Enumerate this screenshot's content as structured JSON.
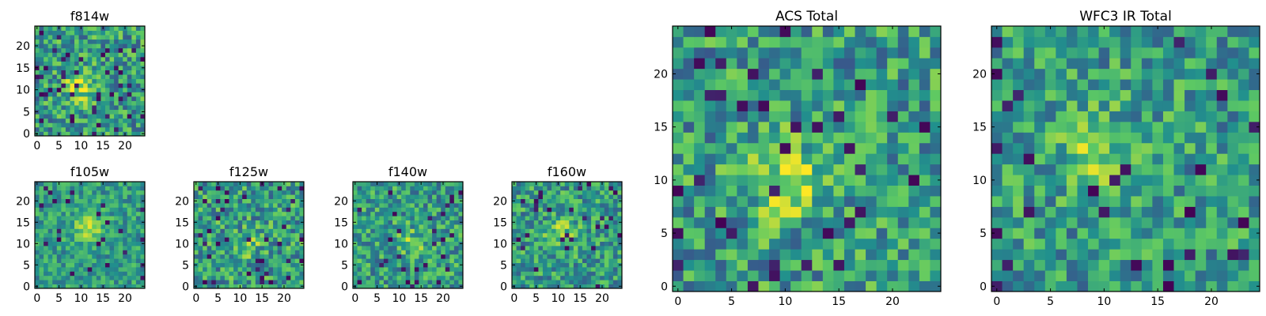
{
  "figure": {
    "background": "#ffffff",
    "colormap": [
      "#440154",
      "#3b528b",
      "#21908d",
      "#5dc963",
      "#fde725"
    ]
  },
  "chart_data": [
    {
      "type": "heatmap",
      "title": "f814w",
      "grid": "25x25",
      "xticks": [
        0,
        5,
        10,
        15,
        20
      ],
      "yticks": [
        0,
        5,
        10,
        15,
        20
      ],
      "xlim": [
        0,
        24
      ],
      "ylim": [
        0,
        24
      ],
      "value_range": [
        0,
        1
      ],
      "description_values": "pixel intensity map, bright compact source near (10, 12)",
      "seed": 814,
      "peak": [
        10,
        11
      ],
      "peak_strength": 0.35,
      "noise": 0.55,
      "dark_fraction": 0.06
    },
    {
      "type": "heatmap",
      "title": "f105w",
      "grid": "25x25",
      "xticks": [
        0,
        5,
        10,
        15,
        20
      ],
      "yticks": [
        0,
        5,
        10,
        15,
        20
      ],
      "xlim": [
        0,
        24
      ],
      "ylim": [
        0,
        24
      ],
      "value_range": [
        0,
        1
      ],
      "seed": 105,
      "peak": [
        12,
        14
      ],
      "peak_strength": 0.3,
      "noise": 0.4,
      "dark_fraction": 0.03
    },
    {
      "type": "heatmap",
      "title": "f125w",
      "grid": "25x25",
      "xticks": [
        0,
        5,
        10,
        15,
        20
      ],
      "yticks": [
        0,
        5,
        10,
        15,
        20
      ],
      "xlim": [
        0,
        24
      ],
      "ylim": [
        0,
        24
      ],
      "value_range": [
        0,
        1
      ],
      "seed": 125,
      "peak": [
        12,
        10
      ],
      "peak_strength": 0.15,
      "noise": 0.55,
      "dark_fraction": 0.05
    },
    {
      "type": "heatmap",
      "title": "f140w",
      "grid": "25x25",
      "xticks": [
        0,
        5,
        10,
        15,
        20
      ],
      "yticks": [
        0,
        5,
        10,
        15,
        20
      ],
      "xlim": [
        0,
        24
      ],
      "ylim": [
        0,
        24
      ],
      "value_range": [
        0,
        1
      ],
      "seed": 140,
      "peak": [
        13,
        10
      ],
      "peak_strength": 0.2,
      "noise": 0.5,
      "dark_fraction": 0.04
    },
    {
      "type": "heatmap",
      "title": "f160w",
      "grid": "25x25",
      "xticks": [
        0,
        5,
        10,
        15,
        20
      ],
      "yticks": [
        0,
        5,
        10,
        15,
        20
      ],
      "xlim": [
        0,
        24
      ],
      "ylim": [
        0,
        24
      ],
      "value_range": [
        0,
        1
      ],
      "seed": 160,
      "peak": [
        11,
        12
      ],
      "peak_strength": 0.25,
      "noise": 0.5,
      "dark_fraction": 0.04
    },
    {
      "type": "heatmap",
      "title": "ACS Total",
      "grid": "25x25",
      "xticks": [
        0,
        5,
        10,
        15,
        20
      ],
      "yticks": [
        0,
        5,
        10,
        15,
        20
      ],
      "xlim": [
        0,
        24
      ],
      "ylim": [
        0,
        24
      ],
      "value_range": [
        0,
        1
      ],
      "seed": 900,
      "peak": [
        10,
        10
      ],
      "peak_strength": 0.35,
      "noise": 0.55,
      "dark_fraction": 0.06
    },
    {
      "type": "heatmap",
      "title": "WFC3 IR Total",
      "grid": "25x25",
      "xticks": [
        0,
        5,
        10,
        15,
        20
      ],
      "yticks": [
        0,
        5,
        10,
        15,
        20
      ],
      "xlim": [
        0,
        24
      ],
      "ylim": [
        0,
        24
      ],
      "value_range": [
        0,
        1
      ],
      "seed": 901,
      "peak": [
        9,
        13
      ],
      "peak_strength": 0.25,
      "noise": 0.5,
      "dark_fraction": 0.05
    }
  ]
}
